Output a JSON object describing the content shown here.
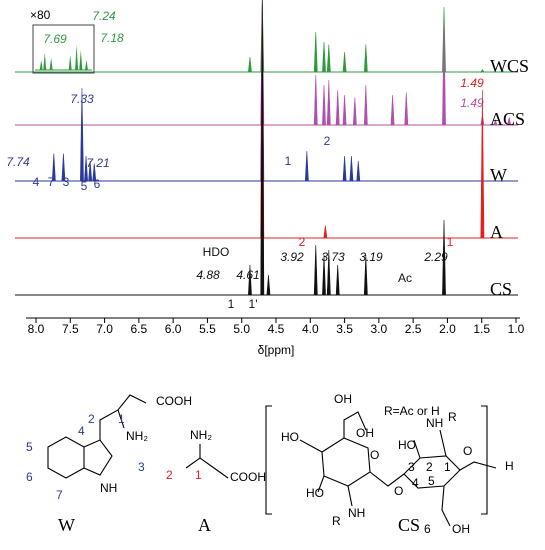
{
  "chart_data": {
    "type": "nmr-stack",
    "xlabel": "δ[ppm]",
    "xlim": [
      8.0,
      1.0
    ],
    "xticks": [
      {
        "value": 8,
        "label": "8.0"
      },
      7.5,
      {
        "value": 7,
        "label": "7.0"
      },
      6.5,
      {
        "value": 6,
        "label": "6.0"
      },
      5.5,
      {
        "value": 5,
        "label": "5.0"
      },
      4.5,
      {
        "value": 4,
        "label": "4.0"
      },
      3.5,
      {
        "value": 3,
        "label": "3.0"
      },
      2.5,
      {
        "value": 2,
        "label": "2.0"
      },
      1.5,
      {
        "value": 1,
        "label": "1.0"
      }
    ],
    "series": [
      {
        "name": "WCS",
        "color": "#2e9a3c",
        "x": [
          4.88,
          4.7,
          3.92,
          3.8,
          3.73,
          3.5,
          3.19,
          2.05,
          1.49,
          1.2
        ],
        "values": [
          0.3,
          1.44,
          0.8,
          0.6,
          0.55,
          0.4,
          0.55,
          1.3,
          0.05,
          0.05
        ],
        "inset": {
          "label": "×80",
          "x": [
            7.74,
            7.69,
            7.6,
            7.33,
            7.24,
            7.18,
            7.1
          ],
          "values": [
            0.2,
            0.35,
            0.25,
            0.3,
            0.5,
            0.4,
            0.2
          ],
          "annotations": [
            {
              "text": "7.69",
              "x": 7.69
            },
            {
              "text": "7.24",
              "x": 7.24
            },
            {
              "text": "7.18",
              "x": 7.18
            }
          ]
        },
        "annotations": []
      },
      {
        "name": "ACS",
        "color": "#b04fae",
        "x": [
          4.7,
          3.92,
          3.8,
          3.73,
          3.6,
          3.5,
          3.35,
          3.19,
          2.8,
          2.6,
          2.05,
          1.49,
          1.3,
          1.1
        ],
        "values": [
          2.5,
          1.0,
          0.8,
          0.9,
          0.7,
          0.6,
          0.55,
          0.8,
          0.6,
          0.65,
          2.0,
          0.2,
          0.1,
          0.15
        ],
        "annotations": [
          {
            "text": "1.49",
            "x": 1.49
          }
        ]
      },
      {
        "name": "W",
        "color": "#2b3a9a",
        "x": [
          7.74,
          7.6,
          7.33,
          7.27,
          7.21,
          7.15,
          4.7,
          4.05,
          3.5,
          3.4,
          3.3
        ],
        "values": [
          0.55,
          0.55,
          1.86,
          0.5,
          0.4,
          0.35,
          3.6,
          0.6,
          0.5,
          0.5,
          0.4
        ],
        "annotations": [
          {
            "text": "7.74",
            "x": 7.74
          },
          {
            "text": "7.33",
            "x": 7.33
          },
          {
            "text": "7.21",
            "x": 7.21
          },
          {
            "text": "4",
            "x": 7.74
          },
          {
            "text": "7",
            "x": 7.6
          },
          {
            "text": "3",
            "x": 7.33
          },
          {
            "text": "5",
            "x": 7.21
          },
          {
            "text": "6",
            "x": 7.15
          },
          {
            "text": "1",
            "x": 4.05
          },
          {
            "text": "2",
            "x": 3.4
          }
        ]
      },
      {
        "name": "A",
        "color": "#e02020",
        "x": [
          4.7,
          3.78,
          1.49
        ],
        "values": [
          4.76,
          0.25,
          2.96
        ],
        "annotations": [
          {
            "text": "1.49",
            "x": 1.49
          },
          {
            "text": "2",
            "x": 3.78
          },
          {
            "text": "1",
            "x": 1.49
          }
        ]
      },
      {
        "name": "CS",
        "color": "#111111",
        "x": [
          4.88,
          4.7,
          4.61,
          3.92,
          3.8,
          3.73,
          3.6,
          3.19,
          2.05
        ],
        "values": [
          0.6,
          5.9,
          0.4,
          1.0,
          0.8,
          0.9,
          0.6,
          0.8,
          1.5
        ],
        "annotations": [
          {
            "text": "HDO",
            "x": 4.7
          },
          {
            "text": "4.88",
            "x": 4.88
          },
          {
            "text": "4.61",
            "x": 4.61
          },
          {
            "text": "3.92",
            "x": 3.92
          },
          {
            "text": "3.73",
            "x": 3.73
          },
          {
            "text": "3.19",
            "x": 3.19
          },
          {
            "text": "Ac",
            "x": 2.05
          },
          {
            "text": "2.29",
            "x": 2.05
          },
          {
            "text": "1",
            "x": 4.88
          },
          {
            "text": "1'",
            "x": 4.61
          }
        ]
      }
    ]
  },
  "structures": {
    "W": {
      "name": "W",
      "labels": [
        "COOH",
        "NH₂",
        "NH",
        "1",
        "2",
        "3",
        "4",
        "5",
        "6",
        "7"
      ]
    },
    "A": {
      "name": "A",
      "labels": [
        "NH₂",
        "COOH",
        "1",
        "2"
      ]
    },
    "CS": {
      "name": "CS",
      "labels": [
        "R=Ac or H",
        "NH",
        "R",
        "HO",
        "OH",
        "O",
        "O",
        "O",
        "H",
        "HO",
        "HO",
        "OH",
        "R",
        "NH",
        "OH",
        "1",
        "2",
        "3",
        "4",
        "5",
        "6"
      ]
    }
  }
}
